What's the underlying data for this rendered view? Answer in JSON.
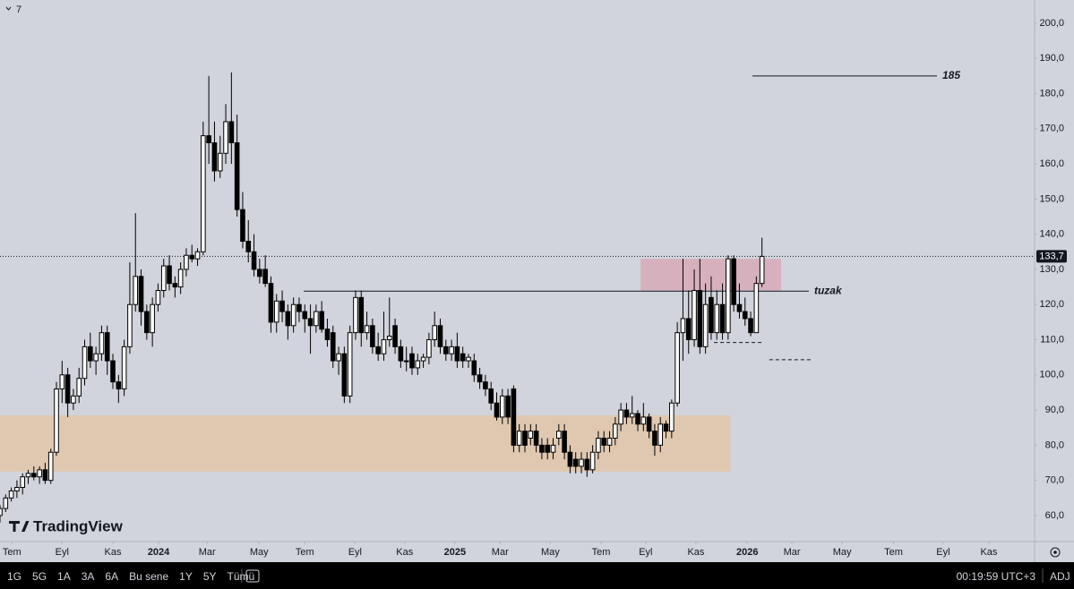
{
  "chart_data": {
    "type": "candlestick",
    "top_label": "7",
    "watermark": "TradingView",
    "xlim": [
      0,
      183.3
    ],
    "xticks": [
      {
        "value": 2.1,
        "label": "Tem"
      },
      {
        "value": 11,
        "label": "Eyl"
      },
      {
        "value": 20,
        "label": "Kas"
      },
      {
        "value": 28.1,
        "label": "2024"
      },
      {
        "value": 36.7,
        "label": "Mar"
      },
      {
        "value": 45.9,
        "label": "May"
      },
      {
        "value": 54,
        "label": "Tem"
      },
      {
        "value": 62.9,
        "label": "Eyl"
      },
      {
        "value": 71.7,
        "label": "Kas"
      },
      {
        "value": 80.6,
        "label": "2025"
      },
      {
        "value": 88.6,
        "label": "Mar"
      },
      {
        "value": 97.5,
        "label": "May"
      },
      {
        "value": 106.5,
        "label": "Tem"
      },
      {
        "value": 114.4,
        "label": "Eyl"
      },
      {
        "value": 123.3,
        "label": "Kas"
      },
      {
        "value": 132.4,
        "label": "2026"
      },
      {
        "value": 140.3,
        "label": "Mar"
      },
      {
        "value": 149.2,
        "label": "May"
      },
      {
        "value": 158.3,
        "label": "Tem"
      },
      {
        "value": 167.1,
        "label": "Eyl"
      },
      {
        "value": 175.2,
        "label": "Kas"
      }
    ],
    "ylim": [
      52.6,
      206.6
    ],
    "yticks": [
      {
        "value": 60,
        "label": "60,0"
      },
      {
        "value": 70,
        "label": "70,0"
      },
      {
        "value": 80,
        "label": "80,0"
      },
      {
        "value": 90,
        "label": "90,0"
      },
      {
        "value": 100,
        "label": "100,0"
      },
      {
        "value": 110,
        "label": "110,0"
      },
      {
        "value": 120,
        "label": "120,0"
      },
      {
        "value": 130,
        "label": "130,0"
      },
      {
        "value": 140,
        "label": "140,0"
      },
      {
        "value": 150,
        "label": "150,0"
      },
      {
        "value": 160,
        "label": "160,0"
      },
      {
        "value": 170,
        "label": "170,0"
      },
      {
        "value": 180,
        "label": "180,0"
      },
      {
        "value": 190,
        "label": "190,0"
      },
      {
        "value": 200,
        "label": "200,0"
      }
    ],
    "grid": false,
    "up_color": "#ffffff",
    "down_color": "#000000",
    "last_price": {
      "value": 133.7,
      "label": "133,7"
    },
    "zones": [
      {
        "low": 72.5,
        "high": 88.5,
        "x_start": 0,
        "x_end": 129.4,
        "color": "#e3c6a8"
      },
      {
        "low": 124,
        "high": 133,
        "x_start": 113.5,
        "x_end": 138.4,
        "color": "#d8a9b8"
      }
    ],
    "annotations": [
      {
        "text": "185",
        "value": 185,
        "x_start": 133.3,
        "x_end": 166
      },
      {
        "text": "tuzak",
        "value": 123.8,
        "x_start": 53.8,
        "x_end": 143.3
      }
    ],
    "dashed_levels": [
      {
        "value": 109.2,
        "x_start": 126.5,
        "x_end": 135.2
      },
      {
        "value": 104.3,
        "x_start": 136.3,
        "x_end": 144
      }
    ],
    "candles": [
      {
        "open": 60,
        "high": 63,
        "low": 58,
        "close": 62
      },
      {
        "open": 62,
        "high": 66,
        "low": 61,
        "close": 65
      },
      {
        "open": 65,
        "high": 68,
        "low": 64,
        "close": 67
      },
      {
        "open": 67,
        "high": 70,
        "low": 65,
        "close": 68
      },
      {
        "open": 68,
        "high": 72,
        "low": 66,
        "close": 71
      },
      {
        "open": 71,
        "high": 73,
        "low": 69,
        "close": 72
      },
      {
        "open": 72,
        "high": 74,
        "low": 70,
        "close": 71
      },
      {
        "open": 71,
        "high": 74,
        "low": 69,
        "close": 73
      },
      {
        "open": 73,
        "high": 75,
        "low": 69,
        "close": 70
      },
      {
        "open": 70,
        "high": 79,
        "low": 69,
        "close": 78
      },
      {
        "open": 78,
        "high": 98,
        "low": 77,
        "close": 96
      },
      {
        "open": 96,
        "high": 104,
        "low": 92,
        "close": 100
      },
      {
        "open": 100,
        "high": 102,
        "low": 88,
        "close": 92
      },
      {
        "open": 92,
        "high": 96,
        "low": 90,
        "close": 94
      },
      {
        "open": 94,
        "high": 102,
        "low": 92,
        "close": 99
      },
      {
        "open": 99,
        "high": 110,
        "low": 97,
        "close": 108
      },
      {
        "open": 108,
        "high": 112,
        "low": 102,
        "close": 104
      },
      {
        "open": 104,
        "high": 108,
        "low": 100,
        "close": 106
      },
      {
        "open": 106,
        "high": 114,
        "low": 104,
        "close": 112
      },
      {
        "open": 112,
        "high": 114,
        "low": 100,
        "close": 104
      },
      {
        "open": 104,
        "high": 106,
        "low": 96,
        "close": 98
      },
      {
        "open": 98,
        "high": 100,
        "low": 92,
        "close": 96
      },
      {
        "open": 96,
        "high": 110,
        "low": 94,
        "close": 108
      },
      {
        "open": 108,
        "high": 132,
        "low": 106,
        "close": 120
      },
      {
        "open": 120,
        "high": 146,
        "low": 118,
        "close": 128
      },
      {
        "open": 128,
        "high": 130,
        "low": 114,
        "close": 118
      },
      {
        "open": 118,
        "high": 120,
        "low": 110,
        "close": 112
      },
      {
        "open": 112,
        "high": 122,
        "low": 108,
        "close": 120
      },
      {
        "open": 120,
        "high": 126,
        "low": 118,
        "close": 124
      },
      {
        "open": 124,
        "high": 133,
        "low": 122,
        "close": 131
      },
      {
        "open": 131,
        "high": 134,
        "low": 124,
        "close": 126
      },
      {
        "open": 126,
        "high": 128,
        "low": 122,
        "close": 125
      },
      {
        "open": 125,
        "high": 132,
        "low": 123,
        "close": 130
      },
      {
        "open": 130,
        "high": 136,
        "low": 128,
        "close": 134
      },
      {
        "open": 134,
        "high": 137,
        "low": 132,
        "close": 133
      },
      {
        "open": 133,
        "high": 136,
        "low": 131,
        "close": 135
      },
      {
        "open": 135,
        "high": 172,
        "low": 134,
        "close": 168
      },
      {
        "open": 168,
        "high": 185,
        "low": 160,
        "close": 166
      },
      {
        "open": 166,
        "high": 172,
        "low": 155,
        "close": 158
      },
      {
        "open": 158,
        "high": 168,
        "low": 156,
        "close": 163
      },
      {
        "open": 163,
        "high": 177,
        "low": 160,
        "close": 172
      },
      {
        "open": 172,
        "high": 186,
        "low": 160,
        "close": 166
      },
      {
        "open": 166,
        "high": 174,
        "low": 145,
        "close": 147
      },
      {
        "open": 147,
        "high": 152,
        "low": 136,
        "close": 138
      },
      {
        "open": 138,
        "high": 144,
        "low": 132,
        "close": 135
      },
      {
        "open": 135,
        "high": 140,
        "low": 128,
        "close": 130
      },
      {
        "open": 130,
        "high": 133,
        "low": 126,
        "close": 128
      },
      {
        "open": 130,
        "high": 134,
        "low": 125,
        "close": 126
      },
      {
        "open": 126,
        "high": 128,
        "low": 112,
        "close": 115
      },
      {
        "open": 115,
        "high": 123,
        "low": 112,
        "close": 121
      },
      {
        "open": 121,
        "high": 124,
        "low": 115,
        "close": 118
      },
      {
        "open": 118,
        "high": 120,
        "low": 110,
        "close": 114
      },
      {
        "open": 114,
        "high": 122,
        "low": 112,
        "close": 120
      },
      {
        "open": 120,
        "high": 122,
        "low": 115,
        "close": 118
      },
      {
        "open": 118,
        "high": 120,
        "low": 112,
        "close": 116
      },
      {
        "open": 116,
        "high": 120,
        "low": 106,
        "close": 114
      },
      {
        "open": 114,
        "high": 120,
        "low": 112,
        "close": 118
      },
      {
        "open": 118,
        "high": 121,
        "low": 112,
        "close": 113
      },
      {
        "open": 113,
        "high": 116,
        "low": 108,
        "close": 110
      },
      {
        "open": 112,
        "high": 114,
        "low": 102,
        "close": 104
      },
      {
        "open": 104,
        "high": 108,
        "low": 100,
        "close": 106
      },
      {
        "open": 106,
        "high": 108,
        "low": 92,
        "close": 94
      },
      {
        "open": 94,
        "high": 114,
        "low": 92,
        "close": 112
      },
      {
        "open": 112,
        "high": 124,
        "low": 110,
        "close": 122
      },
      {
        "open": 122,
        "high": 124,
        "low": 108,
        "close": 112
      },
      {
        "open": 112,
        "high": 118,
        "low": 110,
        "close": 114
      },
      {
        "open": 114,
        "high": 116,
        "low": 106,
        "close": 108
      },
      {
        "open": 108,
        "high": 112,
        "low": 104,
        "close": 106
      },
      {
        "open": 106,
        "high": 118,
        "low": 104,
        "close": 110
      },
      {
        "open": 110,
        "high": 122,
        "low": 108,
        "close": 111
      },
      {
        "open": 114,
        "high": 116,
        "low": 106,
        "close": 108
      },
      {
        "open": 108,
        "high": 110,
        "low": 102,
        "close": 104
      },
      {
        "open": 104,
        "high": 108,
        "low": 101,
        "close": 104
      },
      {
        "open": 106,
        "high": 108,
        "low": 100,
        "close": 102
      },
      {
        "open": 102,
        "high": 106,
        "low": 100,
        "close": 104
      },
      {
        "open": 104,
        "high": 106,
        "low": 102,
        "close": 105
      },
      {
        "open": 105,
        "high": 112,
        "low": 103,
        "close": 110
      },
      {
        "open": 110,
        "high": 118,
        "low": 108,
        "close": 114
      },
      {
        "open": 114,
        "high": 116,
        "low": 106,
        "close": 108
      },
      {
        "open": 108,
        "high": 110,
        "low": 104,
        "close": 106
      },
      {
        "open": 106,
        "high": 110,
        "low": 104,
        "close": 108
      },
      {
        "open": 108,
        "high": 112,
        "low": 102,
        "close": 104
      },
      {
        "open": 106,
        "high": 108,
        "low": 102,
        "close": 104
      },
      {
        "open": 104,
        "high": 106,
        "low": 102,
        "close": 105
      },
      {
        "open": 104,
        "high": 106,
        "low": 98,
        "close": 100
      },
      {
        "open": 100,
        "high": 102,
        "low": 96,
        "close": 98
      },
      {
        "open": 98,
        "high": 100,
        "low": 94,
        "close": 96
      },
      {
        "open": 96,
        "high": 98,
        "low": 90,
        "close": 92
      },
      {
        "open": 92,
        "high": 95,
        "low": 87,
        "close": 88
      },
      {
        "open": 88,
        "high": 96,
        "low": 86,
        "close": 94
      },
      {
        "open": 94,
        "high": 96,
        "low": 86,
        "close": 88
      },
      {
        "open": 96,
        "high": 97,
        "low": 78,
        "close": 80
      },
      {
        "open": 80,
        "high": 86,
        "low": 78,
        "close": 84
      },
      {
        "open": 84,
        "high": 86,
        "low": 78,
        "close": 80
      },
      {
        "open": 82,
        "high": 86,
        "low": 80,
        "close": 84
      },
      {
        "open": 84,
        "high": 86,
        "low": 78,
        "close": 80
      },
      {
        "open": 80,
        "high": 82,
        "low": 76,
        "close": 78
      },
      {
        "open": 80,
        "high": 82,
        "low": 76,
        "close": 78
      },
      {
        "open": 78,
        "high": 82,
        "low": 76,
        "close": 80
      },
      {
        "open": 82,
        "high": 86,
        "low": 80,
        "close": 84
      },
      {
        "open": 84,
        "high": 86,
        "low": 76,
        "close": 78
      },
      {
        "open": 78,
        "high": 80,
        "low": 72,
        "close": 74
      },
      {
        "open": 76,
        "high": 78,
        "low": 72,
        "close": 74
      },
      {
        "open": 74,
        "high": 78,
        "low": 72,
        "close": 76
      },
      {
        "open": 76,
        "high": 78,
        "low": 71,
        "close": 73
      },
      {
        "open": 73,
        "high": 80,
        "low": 72,
        "close": 78
      },
      {
        "open": 78,
        "high": 84,
        "low": 76,
        "close": 82
      },
      {
        "open": 82,
        "high": 84,
        "low": 78,
        "close": 80
      },
      {
        "open": 80,
        "high": 84,
        "low": 78,
        "close": 82
      },
      {
        "open": 82,
        "high": 88,
        "low": 80,
        "close": 86
      },
      {
        "open": 86,
        "high": 92,
        "low": 84,
        "close": 90
      },
      {
        "open": 90,
        "high": 92,
        "low": 86,
        "close": 88
      },
      {
        "open": 88,
        "high": 94,
        "low": 86,
        "close": 89
      },
      {
        "open": 89,
        "high": 90,
        "low": 84,
        "close": 86
      },
      {
        "open": 86,
        "high": 92,
        "low": 84,
        "close": 88
      },
      {
        "open": 88,
        "high": 89,
        "low": 82,
        "close": 84
      },
      {
        "open": 84,
        "high": 86,
        "low": 77,
        "close": 80
      },
      {
        "open": 80,
        "high": 88,
        "low": 78,
        "close": 86
      },
      {
        "open": 86,
        "high": 87,
        "low": 82,
        "close": 84
      },
      {
        "open": 84,
        "high": 93,
        "low": 82,
        "close": 92
      },
      {
        "open": 92,
        "high": 115,
        "low": 91,
        "close": 112
      },
      {
        "open": 112,
        "high": 133,
        "low": 104,
        "close": 116
      },
      {
        "open": 116,
        "high": 124,
        "low": 106,
        "close": 110
      },
      {
        "open": 110,
        "high": 130,
        "low": 108,
        "close": 124
      },
      {
        "open": 124,
        "high": 133,
        "low": 106,
        "close": 108
      },
      {
        "open": 108,
        "high": 126,
        "low": 106,
        "close": 120
      },
      {
        "open": 122,
        "high": 128,
        "low": 110,
        "close": 112
      },
      {
        "open": 112,
        "high": 124,
        "low": 110,
        "close": 120
      },
      {
        "open": 120,
        "high": 126,
        "low": 110,
        "close": 112
      },
      {
        "open": 112,
        "high": 134,
        "low": 110,
        "close": 133
      },
      {
        "open": 133,
        "high": 134,
        "low": 118,
        "close": 120
      },
      {
        "open": 120,
        "high": 126,
        "low": 116,
        "close": 118
      },
      {
        "open": 118,
        "high": 122,
        "low": 114,
        "close": 116
      },
      {
        "open": 116,
        "high": 118,
        "low": 111,
        "close": 112
      },
      {
        "open": 112,
        "high": 128,
        "low": 112,
        "close": 126
      },
      {
        "open": 126,
        "high": 139,
        "low": 125,
        "close": 133.7
      }
    ]
  },
  "toolbar": {
    "ranges": [
      "1G",
      "5G",
      "1A",
      "3A",
      "6A",
      "Bu sene",
      "1Y",
      "5Y",
      "Tümü"
    ],
    "clock": "00:19:59 UTC+3",
    "adj": "ADJ"
  }
}
